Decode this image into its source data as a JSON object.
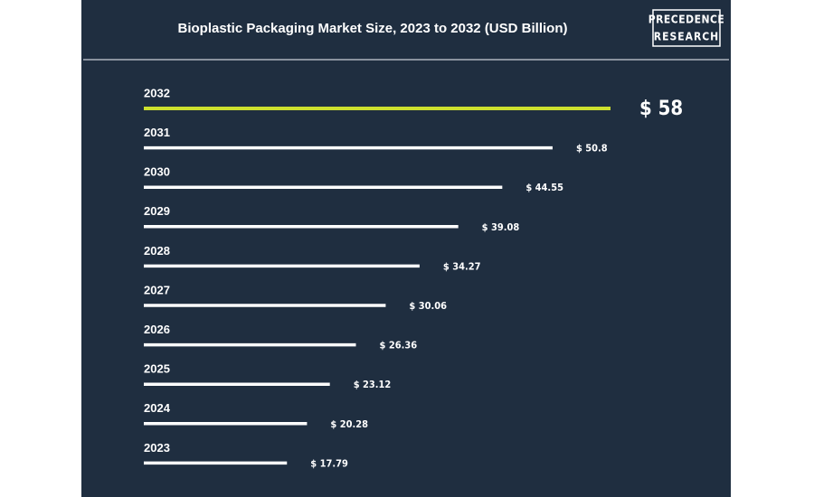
{
  "chart_data": {
    "type": "bar",
    "orientation": "horizontal",
    "title": "Bioplastic Packaging Market Size, 2023 to 2032 (USD Billion)",
    "logo": [
      "PRECEDENCE",
      "RESEARCH"
    ],
    "categories": [
      "2032",
      "2031",
      "2030",
      "2029",
      "2028",
      "2027",
      "2026",
      "2025",
      "2024",
      "2023"
    ],
    "values": [
      58,
      50.8,
      44.55,
      39.08,
      34.27,
      30.06,
      26.36,
      23.12,
      20.28,
      17.79
    ],
    "value_labels": [
      "$ 58",
      "$ 50.8",
      "$ 44.55",
      "$ 39.08",
      "$ 34.27",
      "$ 30.06",
      "$ 26.36",
      "$ 23.12",
      "$ 20.28",
      "$ 17.79"
    ],
    "colors": [
      "#cde02e",
      "#ffffff",
      "#ffffff",
      "#ffffff",
      "#ffffff",
      "#ffffff",
      "#ffffff",
      "#ffffff",
      "#ffffff",
      "#ffffff"
    ],
    "background": "#1f2e40"
  }
}
